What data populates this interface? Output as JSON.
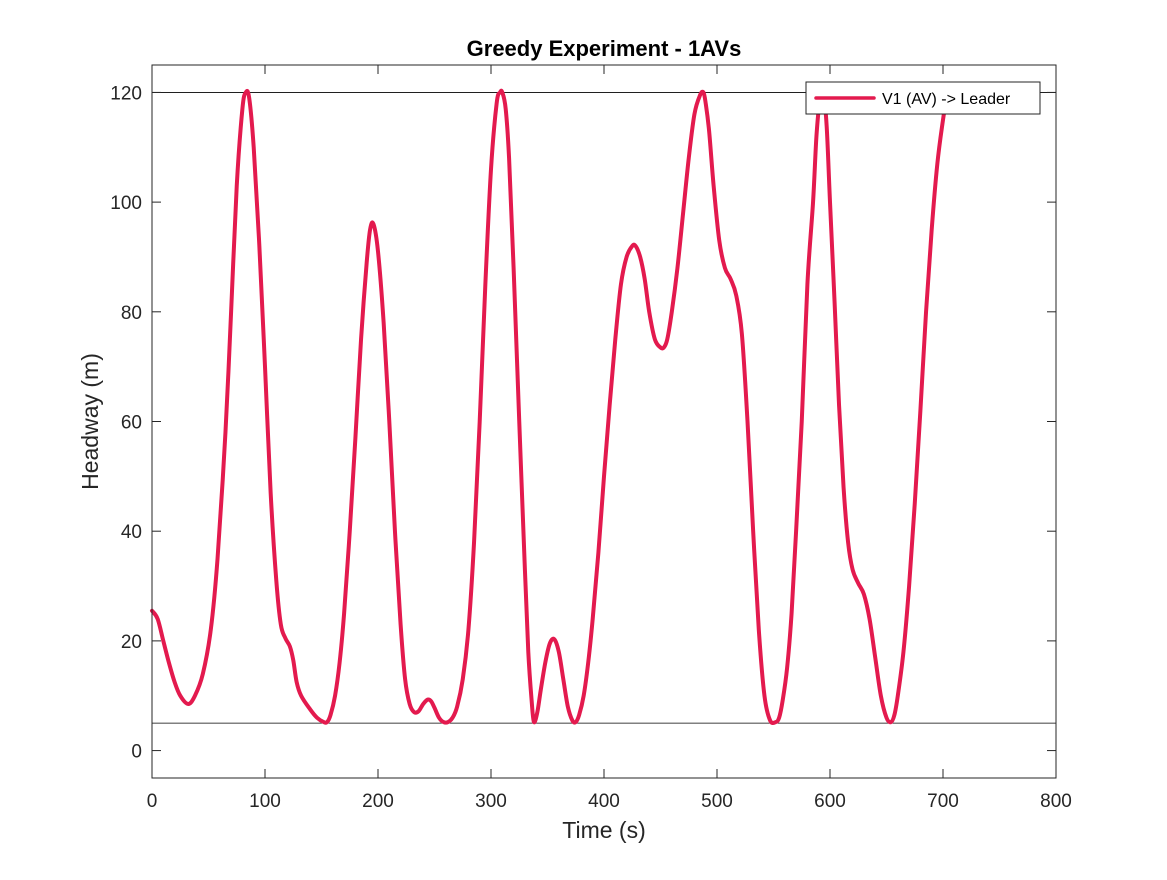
{
  "chart_data": {
    "type": "line",
    "title": "Greedy Experiment - 1AVs",
    "xlabel": "Time (s)",
    "ylabel": "Headway (m)",
    "xlim": [
      0,
      800
    ],
    "ylim": [
      -5,
      125
    ],
    "xticks": [
      0,
      100,
      200,
      300,
      400,
      500,
      600,
      700,
      800
    ],
    "yticks": [
      0,
      20,
      40,
      60,
      80,
      100,
      120
    ],
    "grid": false,
    "legend_position": "top-right",
    "reference_lines": [
      {
        "y": 120,
        "color": "#000000"
      },
      {
        "y": 5,
        "color": "#000000"
      }
    ],
    "series": [
      {
        "name": "V1 (AV) -> Leader",
        "color": "#E31A4E",
        "x": [
          0,
          5,
          10,
          15,
          20,
          25,
          32,
          38,
          45,
          52,
          58,
          65,
          70,
          75,
          80,
          83,
          86,
          90,
          95,
          100,
          105,
          110,
          114,
          118,
          122,
          125,
          128,
          132,
          140,
          146,
          152,
          155,
          158,
          162,
          166,
          170,
          175,
          180,
          185,
          190,
          193,
          196,
          200,
          205,
          210,
          215,
          220,
          224,
          228,
          232,
          236,
          240,
          244,
          247,
          250,
          254,
          258,
          262,
          266,
          270,
          275,
          280,
          285,
          290,
          295,
          300,
          305,
          308,
          310,
          313,
          316,
          320,
          325,
          330,
          333,
          336,
          338,
          341,
          344,
          348,
          352,
          356,
          360,
          364,
          368,
          372,
          375,
          378,
          382,
          386,
          390,
          395,
          400,
          405,
          410,
          415,
          420,
          425,
          428,
          432,
          436,
          440,
          445,
          450,
          453,
          456,
          460,
          465,
          470,
          475,
          480,
          485,
          488,
          490,
          493,
          497,
          502,
          507,
          512,
          517,
          522,
          527,
          532,
          537,
          542,
          547,
          552,
          555,
          558,
          562,
          566,
          570,
          575,
          580,
          585,
          588,
          591,
          594,
          597,
          600,
          604,
          608,
          612,
          616,
          620,
          625,
          630,
          635,
          640,
          645,
          650,
          654,
          657,
          660,
          665,
          670,
          675,
          680,
          685,
          690,
          695,
          700,
          704
        ],
        "y": [
          25.5,
          24,
          20,
          16,
          12.5,
          10,
          8.5,
          10,
          14,
          22,
          35,
          58,
          80,
          103,
          117,
          120,
          119,
          110,
          92,
          70,
          47,
          31,
          23,
          20.5,
          19,
          16.5,
          12.5,
          10,
          7.5,
          6,
          5.2,
          5.2,
          6.5,
          10,
          16,
          25,
          40,
          57,
          75,
          89,
          95,
          96,
          91,
          78,
          60,
          40,
          23,
          13,
          8.5,
          7,
          7.2,
          8.5,
          9.3,
          9,
          7.8,
          6,
          5.2,
          5.2,
          6,
          8,
          13,
          22,
          38,
          60,
          85,
          106,
          118,
          120,
          120,
          117,
          108,
          88,
          60,
          33,
          18,
          9,
          5.2,
          7,
          11,
          16,
          19.5,
          20.3,
          18,
          13,
          8,
          5.5,
          5.2,
          6.5,
          10,
          16,
          24,
          36,
          50,
          63,
          75,
          85,
          90,
          92,
          92,
          90,
          86,
          80,
          75,
          73.5,
          73.5,
          75,
          80,
          88,
          98,
          108,
          116,
          119.5,
          120,
          118,
          113,
          103,
          93,
          88,
          86,
          83,
          76,
          60,
          40,
          22,
          10,
          5.5,
          5.2,
          6,
          9,
          15,
          25,
          40,
          60,
          85,
          100,
          112,
          118.5,
          120,
          114,
          100,
          82,
          63,
          48,
          38,
          33,
          30.5,
          28.5,
          24,
          17,
          10,
          6,
          5.2,
          6.5,
          10,
          18,
          30,
          45,
          62,
          80,
          95,
          107,
          115,
          120
        ]
      }
    ]
  }
}
